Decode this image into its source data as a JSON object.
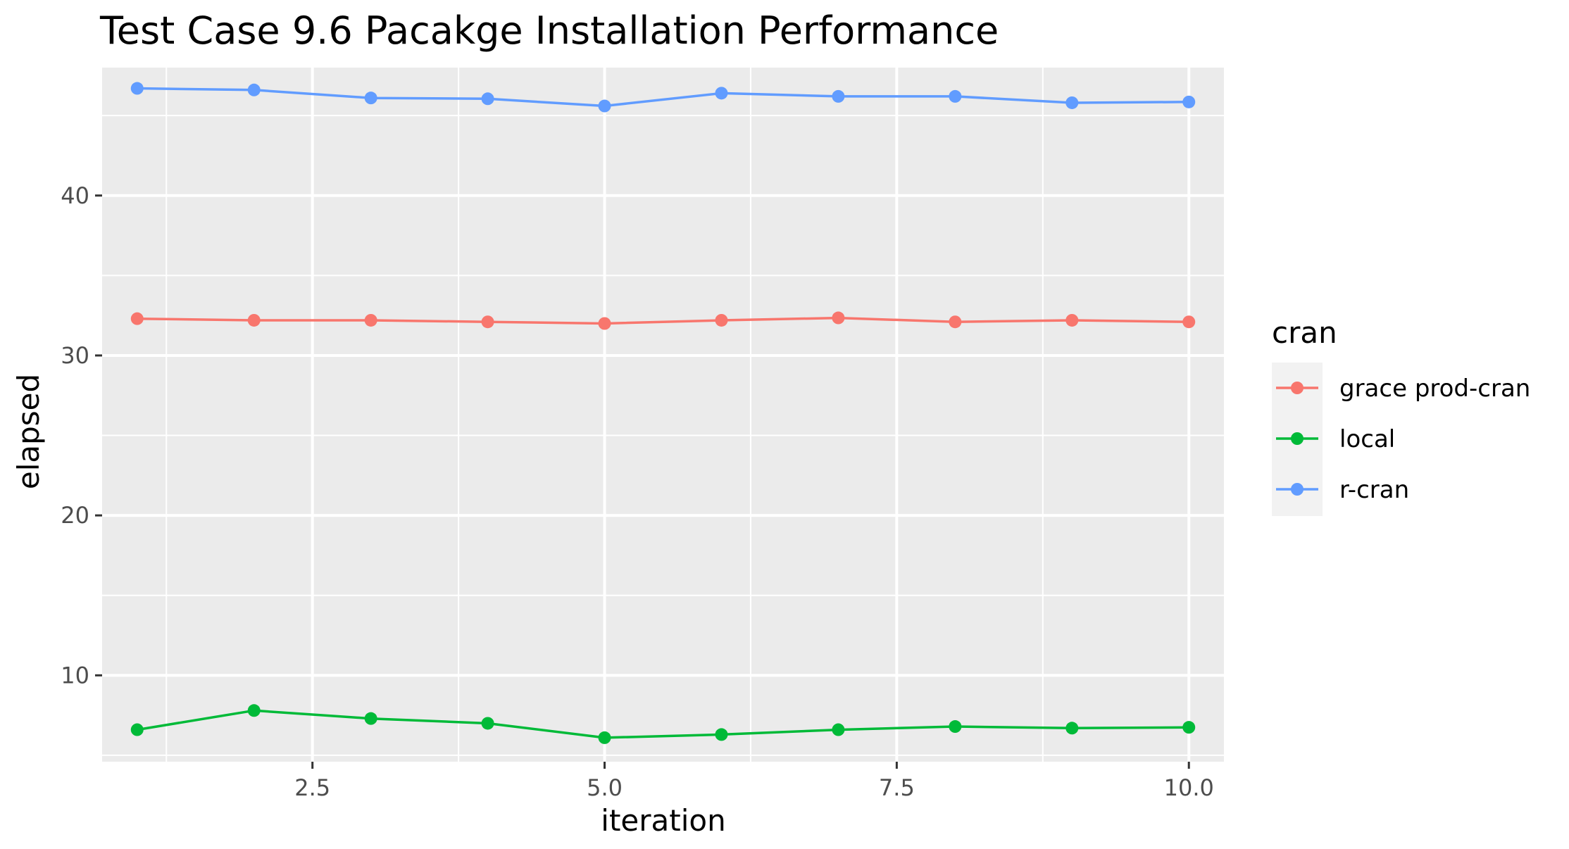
{
  "chart_data": {
    "type": "line",
    "title": "Test Case 9.6 Pacakge Installation Performance",
    "xlabel": "iteration",
    "ylabel": "elapsed",
    "xlim": [
      0.7,
      10.3
    ],
    "ylim": [
      4.6,
      48.0
    ],
    "x_ticks": [
      2.5,
      5.0,
      7.5,
      10.0
    ],
    "x_tick_labels": [
      "2.5",
      "5.0",
      "7.5",
      "10.0"
    ],
    "x_minor_ticks": [
      1.25,
      3.75,
      6.25,
      8.75
    ],
    "y_ticks": [
      10,
      20,
      30,
      40
    ],
    "y_tick_labels": [
      "10",
      "20",
      "30",
      "40"
    ],
    "y_minor_ticks": [
      5,
      15,
      25,
      35,
      45
    ],
    "grid": true,
    "legend_title": "cran",
    "legend_position": "right",
    "x": [
      1,
      2,
      3,
      4,
      5,
      6,
      7,
      8,
      9,
      10
    ],
    "series": [
      {
        "name": "grace prod-cran",
        "color": "#f8766d",
        "values": [
          32.3,
          32.2,
          32.2,
          32.1,
          32.0,
          32.2,
          32.35,
          32.1,
          32.2,
          32.1
        ]
      },
      {
        "name": "local",
        "color": "#00ba38",
        "values": [
          6.6,
          7.8,
          7.3,
          7.0,
          6.1,
          6.3,
          6.6,
          6.8,
          6.7,
          6.75
        ]
      },
      {
        "name": "r-cran",
        "color": "#619cff",
        "values": [
          46.7,
          46.6,
          46.1,
          46.05,
          45.6,
          46.4,
          46.2,
          46.2,
          45.8,
          45.85
        ]
      }
    ]
  }
}
